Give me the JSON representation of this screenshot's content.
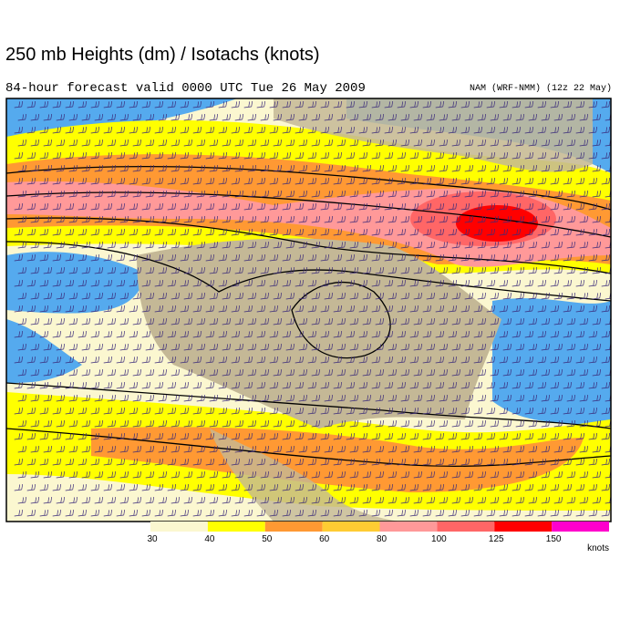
{
  "header": {
    "title": "250 mb Heights (dm) / Isotachs (knots)",
    "subtitle": "84-hour forecast valid 0000 UTC Tue 26 May 2009",
    "model": "NAM (WRF-NMM) (12z 22 May)"
  },
  "legend": {
    "unit": "knots",
    "bins": [
      {
        "label": "30",
        "color": "#fbf7d0"
      },
      {
        "label": "40",
        "color": "#ffff00"
      },
      {
        "label": "50",
        "color": "#ff9933"
      },
      {
        "label": "60",
        "color": "#ffcc33"
      },
      {
        "label": "80",
        "color": "#ff9999"
      },
      {
        "label": "100",
        "color": "#ff6666"
      },
      {
        "label": "125",
        "color": "#ff0000"
      },
      {
        "label": "150",
        "color": "#ff00cc"
      }
    ]
  }
}
